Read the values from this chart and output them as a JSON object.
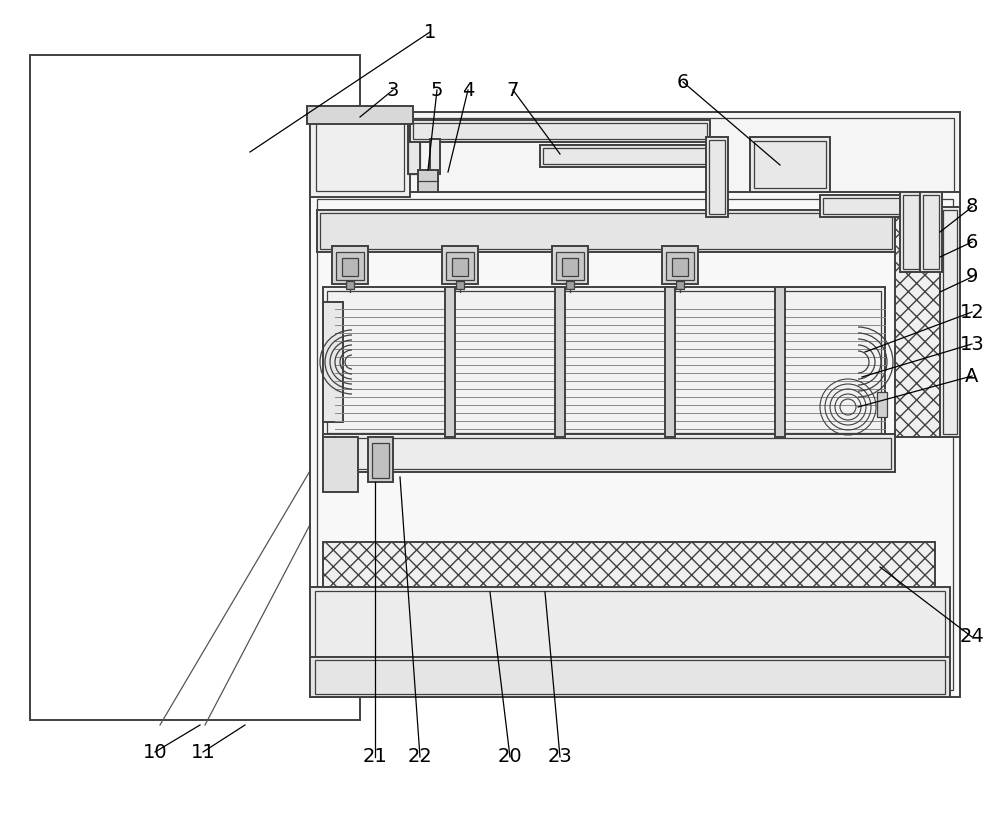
{
  "bg_color": "#ffffff",
  "lc": "#404040",
  "lc2": "#555555",
  "fill_white": "#ffffff",
  "fill_light": "#f0f0f0",
  "fill_med": "#e0e0e0",
  "fill_dark": "#c8c8c8"
}
